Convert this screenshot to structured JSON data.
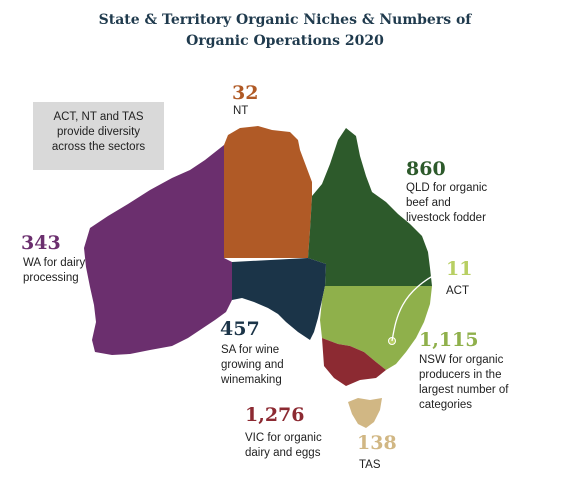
{
  "title_line1": "State & Territory Organic Niches & Numbers of",
  "title_line2": "Organic Operations 2020",
  "note": [
    "ACT, NT and TAS",
    "provide diversity",
    "across the sectors"
  ],
  "colors": {
    "wa": "#6b2f6e",
    "nt": "#b05a26",
    "qld": "#2d5a2b",
    "sa": "#1b3448",
    "nsw": "#8fb04b",
    "act": "#b8cf63",
    "vic": "#8c2a32",
    "tas": "#d1b784",
    "title": "#1f3a4d"
  },
  "regions": {
    "nt": {
      "number": "32",
      "label": [
        "NT"
      ]
    },
    "qld": {
      "number": "860",
      "label": [
        "QLD for organic",
        "beef and",
        "livestock fodder"
      ]
    },
    "act": {
      "number": "11",
      "label": [
        "ACT"
      ]
    },
    "wa": {
      "number": "343",
      "label": [
        "WA for dairy",
        "processing"
      ]
    },
    "sa": {
      "number": "457",
      "label": [
        "SA for wine",
        "growing and",
        "winemaking"
      ]
    },
    "nsw": {
      "number": "1,115",
      "label": [
        "NSW for organic",
        "producers in the",
        "largest number of",
        "categories"
      ]
    },
    "vic": {
      "number": "1,276",
      "label": [
        "VIC for organic",
        "dairy and eggs"
      ]
    },
    "tas": {
      "number": "138",
      "label": [
        "TAS"
      ]
    }
  }
}
